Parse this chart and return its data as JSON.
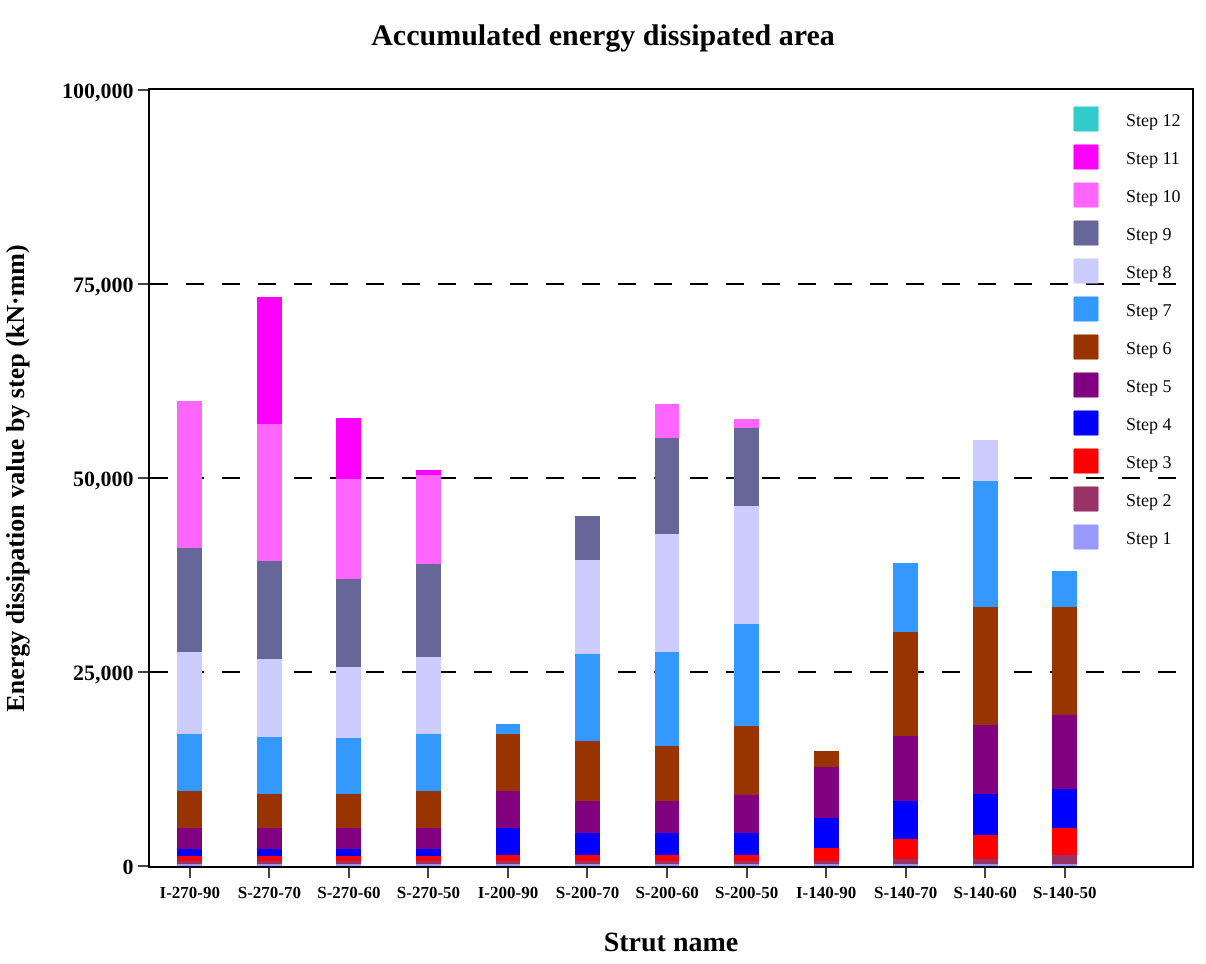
{
  "chart_data": {
    "type": "bar",
    "stacked": true,
    "title": "Accumulated energy dissipated area",
    "xlabel": "Strut name",
    "ylabel": "Energy dissipation value by step (kN·mm)",
    "categories": [
      "I-270-90",
      "S-270-70",
      "S-270-60",
      "S-270-50",
      "I-200-90",
      "S-200-70",
      "S-200-60",
      "S-200-50",
      "I-140-90",
      "S-140-70",
      "S-140-60",
      "S-140-50"
    ],
    "series": [
      {
        "name": "Step 1",
        "color": "#9999ff",
        "values": [
          300,
          300,
          300,
          300,
          300,
          300,
          300,
          300,
          300,
          300,
          300,
          300
        ]
      },
      {
        "name": "Step 2",
        "color": "#993366",
        "values": [
          400,
          400,
          400,
          400,
          400,
          400,
          400,
          400,
          400,
          700,
          700,
          1200
        ]
      },
      {
        "name": "Step 3",
        "color": "#ff0000",
        "values": [
          600,
          600,
          600,
          600,
          800,
          800,
          800,
          800,
          1700,
          2600,
          3100,
          3500
        ]
      },
      {
        "name": "Step 4",
        "color": "#0000ff",
        "values": [
          1000,
          1000,
          1000,
          1000,
          3500,
          2800,
          2800,
          2800,
          3800,
          4800,
          5200,
          5000
        ]
      },
      {
        "name": "Step 5",
        "color": "#800080",
        "values": [
          2600,
          2600,
          2600,
          2600,
          4700,
          4100,
          4100,
          4900,
          6600,
          8400,
          8900,
          9500
        ]
      },
      {
        "name": "Step 6",
        "color": "#993300",
        "values": [
          4800,
          4500,
          4500,
          4800,
          7400,
          7800,
          7100,
          8900,
          1900,
          13400,
          15200,
          14000
        ]
      },
      {
        "name": "Step 7",
        "color": "#3399ff",
        "values": [
          7400,
          7300,
          7100,
          7400,
          1200,
          11200,
          12100,
          13100,
          null,
          8800,
          16300,
          4500
        ]
      },
      {
        "name": "Step 8",
        "color": "#ccccff",
        "values": [
          10500,
          10000,
          9200,
          9900,
          null,
          12100,
          15200,
          15200,
          null,
          null,
          5100,
          null
        ]
      },
      {
        "name": "Step 9",
        "color": "#666699",
        "values": [
          13400,
          12700,
          11300,
          12000,
          null,
          5600,
          12400,
          10100,
          null,
          null,
          null,
          null
        ]
      },
      {
        "name": "Step 10",
        "color": "#ff66ff",
        "values": [
          18800,
          17600,
          12900,
          11400,
          null,
          null,
          4300,
          1100,
          null,
          null,
          null,
          null
        ]
      },
      {
        "name": "Step 11",
        "color": "#ff00ff",
        "values": [
          null,
          16300,
          7800,
          600,
          null,
          null,
          null,
          null,
          null,
          null,
          null,
          null
        ]
      },
      {
        "name": "Step 12",
        "color": "#33cccc",
        "values": [
          null,
          null,
          null,
          null,
          null,
          null,
          null,
          null,
          null,
          null,
          null,
          null
        ]
      }
    ],
    "ylim": [
      0,
      100000
    ],
    "yticks": [
      {
        "value": 0,
        "label": "0"
      },
      {
        "value": 25000,
        "label": "25,000"
      },
      {
        "value": 50000,
        "label": "50,000"
      },
      {
        "value": 75000,
        "label": "75,000"
      },
      {
        "value": 100000,
        "label": "100,000"
      }
    ],
    "grid": "y",
    "legend": "top right"
  }
}
